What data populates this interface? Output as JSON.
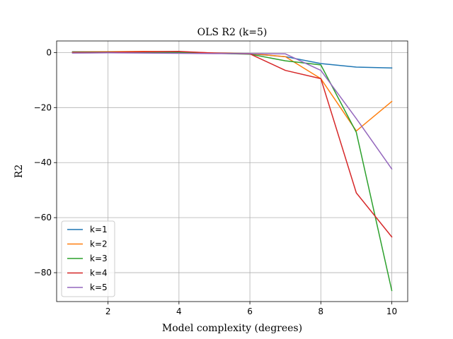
{
  "chart_data": {
    "type": "line",
    "title": "OLS R2 (k=5)",
    "xlabel": "Model complexity (degrees)",
    "ylabel": "R2",
    "xlim": [
      0.55,
      10.45
    ],
    "ylim": [
      -90.5,
      4.2
    ],
    "xticks": [
      2,
      4,
      6,
      8,
      10
    ],
    "yticks": [
      0,
      -20,
      -40,
      -60,
      -80
    ],
    "xtick_labels": [
      "2",
      "4",
      "6",
      "8",
      "10"
    ],
    "ytick_labels": [
      "0",
      "−20",
      "−40",
      "−60",
      "−80"
    ],
    "grid": true,
    "legend_position": "lower-left",
    "x": [
      1,
      2,
      3,
      4,
      5,
      6,
      7,
      8,
      9,
      10
    ],
    "series": [
      {
        "name": "k=1",
        "color": "#1f77b4",
        "values": [
          0.3,
          0.2,
          0.1,
          0.0,
          -0.3,
          -0.5,
          -1.5,
          -4.0,
          -5.3,
          -5.6
        ]
      },
      {
        "name": "k=2",
        "color": "#ff7f0e",
        "values": [
          0.2,
          0.3,
          0.4,
          0.3,
          -0.2,
          -0.4,
          -1.5,
          -9.5,
          -28.5,
          -17.8
        ]
      },
      {
        "name": "k=3",
        "color": "#2ca02c",
        "values": [
          0.1,
          0.2,
          0.2,
          0.1,
          -0.3,
          -0.6,
          -3.0,
          -4.5,
          -29.0,
          -86.5
        ]
      },
      {
        "name": "k=4",
        "color": "#d62728",
        "values": [
          0.0,
          0.1,
          0.3,
          0.4,
          -0.2,
          -0.5,
          -6.5,
          -9.5,
          -51.0,
          -67.0
        ]
      },
      {
        "name": "k=5",
        "color": "#9467bd",
        "values": [
          -0.2,
          -0.1,
          -0.2,
          -0.3,
          -0.4,
          -0.4,
          -0.5,
          -6.5,
          -24.0,
          -42.3
        ]
      }
    ]
  }
}
